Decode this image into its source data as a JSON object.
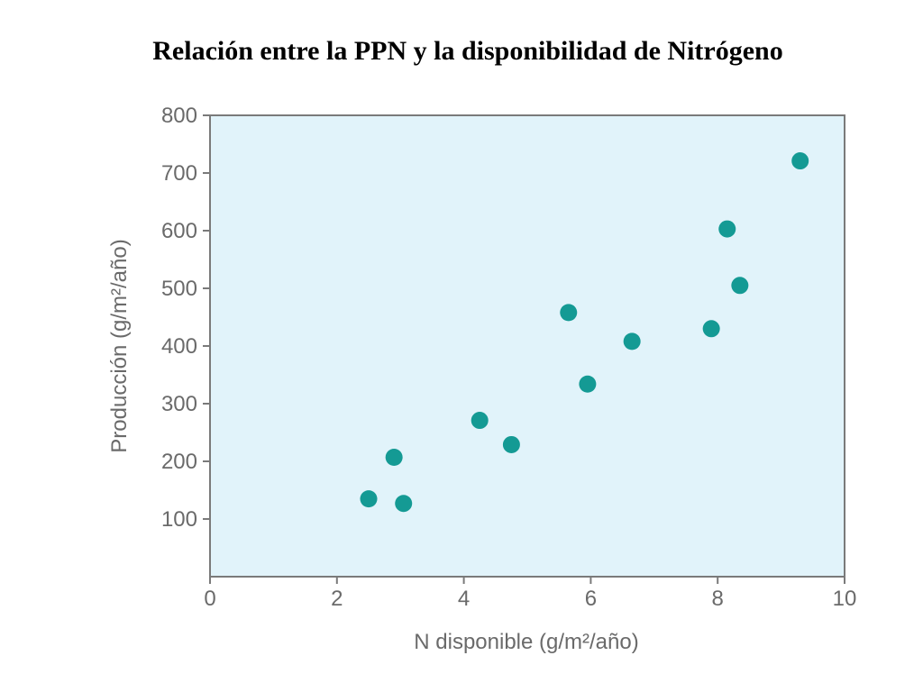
{
  "page": {
    "title": "Relación entre la PPN y la disponibilidad de Nitrógeno"
  },
  "chart_data": {
    "type": "scatter",
    "title": "Relación entre la PPN y la disponibilidad de Nitrógeno",
    "xlabel": "N  disponible (g/m²/año)",
    "ylabel": "Producción (g/m²/año)",
    "xlim": [
      0,
      10
    ],
    "ylim": [
      0,
      800
    ],
    "x_ticks": [
      0,
      2,
      4,
      6,
      8,
      10
    ],
    "y_ticks": [
      100,
      200,
      300,
      400,
      500,
      600,
      700,
      800
    ],
    "grid": false,
    "legend": "none",
    "colors": {
      "background": "#e1f3fa",
      "point": "#149a94",
      "axis": "#7a7a7a"
    },
    "points": [
      {
        "x": 2.5,
        "y": 135
      },
      {
        "x": 2.9,
        "y": 207
      },
      {
        "x": 3.05,
        "y": 127
      },
      {
        "x": 4.25,
        "y": 271
      },
      {
        "x": 4.75,
        "y": 229
      },
      {
        "x": 5.65,
        "y": 458
      },
      {
        "x": 5.95,
        "y": 334
      },
      {
        "x": 6.65,
        "y": 408
      },
      {
        "x": 7.9,
        "y": 430
      },
      {
        "x": 8.15,
        "y": 603
      },
      {
        "x": 8.35,
        "y": 505
      },
      {
        "x": 9.3,
        "y": 721
      }
    ]
  }
}
